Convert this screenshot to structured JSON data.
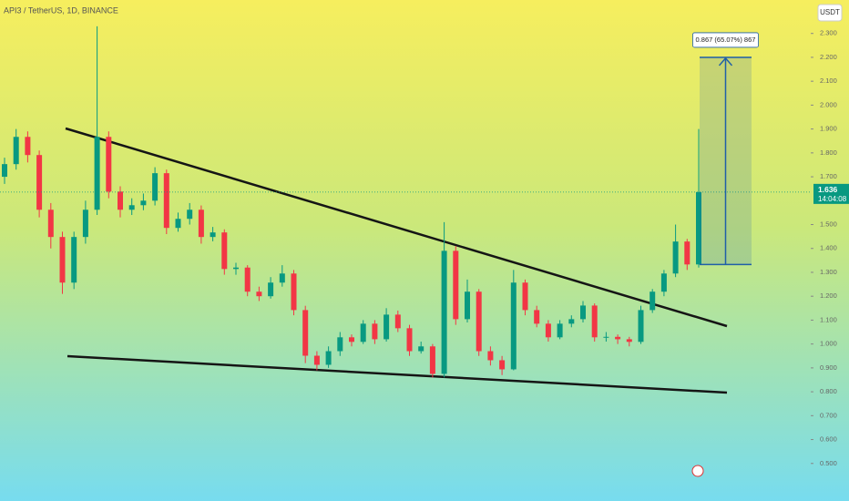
{
  "chart_data": {
    "type": "candlestick",
    "title": "API3 / TetherUS, 1D, BINANCE",
    "currency": "USDT",
    "up_color": "#089981",
    "down_color": "#f23645",
    "ylim": [
      0.4,
      2.44
    ],
    "yticks": [
      {
        "value": 2.3,
        "label": "2.300"
      },
      {
        "value": 2.2,
        "label": "2.200"
      },
      {
        "value": 2.1,
        "label": "2.100"
      },
      {
        "value": 2.0,
        "label": "2.000"
      },
      {
        "value": 1.9,
        "label": "1.900"
      },
      {
        "value": 1.8,
        "label": "1.800"
      },
      {
        "value": 1.7,
        "label": "1.700"
      },
      {
        "value": 1.5,
        "label": "1.500"
      },
      {
        "value": 1.4,
        "label": "1.400"
      },
      {
        "value": 1.3,
        "label": "1.300"
      },
      {
        "value": 1.2,
        "label": "1.200"
      },
      {
        "value": 1.1,
        "label": "1.100"
      },
      {
        "value": 1.0,
        "label": "1.000"
      },
      {
        "value": 0.9,
        "label": "0.900"
      },
      {
        "value": 0.8,
        "label": "0.800"
      },
      {
        "value": 0.7,
        "label": "0.700"
      },
      {
        "value": 0.6,
        "label": "0.600"
      },
      {
        "value": 0.5,
        "label": "0.500"
      }
    ],
    "candles": [
      [
        1.7,
        1.78,
        1.67,
        1.753
      ],
      [
        1.753,
        1.9,
        1.73,
        1.867
      ],
      [
        1.867,
        1.89,
        1.76,
        1.791
      ],
      [
        1.791,
        1.81,
        1.53,
        1.562
      ],
      [
        1.562,
        1.59,
        1.4,
        1.448
      ],
      [
        1.448,
        1.47,
        1.21,
        1.257
      ],
      [
        1.257,
        1.47,
        1.23,
        1.448
      ],
      [
        1.448,
        1.6,
        1.42,
        1.562
      ],
      [
        1.562,
        2.33,
        1.54,
        1.867
      ],
      [
        1.867,
        1.89,
        1.61,
        1.638
      ],
      [
        1.638,
        1.66,
        1.53,
        1.562
      ],
      [
        1.562,
        1.61,
        1.54,
        1.581
      ],
      [
        1.581,
        1.63,
        1.56,
        1.6
      ],
      [
        1.6,
        1.74,
        1.58,
        1.715
      ],
      [
        1.715,
        1.73,
        1.46,
        1.486
      ],
      [
        1.486,
        1.55,
        1.47,
        1.524
      ],
      [
        1.524,
        1.59,
        1.5,
        1.562
      ],
      [
        1.562,
        1.58,
        1.42,
        1.448
      ],
      [
        1.448,
        1.49,
        1.43,
        1.467
      ],
      [
        1.467,
        1.48,
        1.29,
        1.314
      ],
      [
        1.314,
        1.34,
        1.29,
        1.32
      ],
      [
        1.32,
        1.33,
        1.2,
        1.219
      ],
      [
        1.219,
        1.24,
        1.18,
        1.2
      ],
      [
        1.2,
        1.28,
        1.19,
        1.257
      ],
      [
        1.257,
        1.33,
        1.24,
        1.295
      ],
      [
        1.295,
        1.31,
        1.12,
        1.142
      ],
      [
        1.142,
        1.16,
        0.92,
        0.951
      ],
      [
        0.951,
        0.97,
        0.89,
        0.913
      ],
      [
        0.913,
        0.99,
        0.9,
        0.97
      ],
      [
        0.97,
        1.05,
        0.95,
        1.028
      ],
      [
        1.028,
        1.04,
        0.99,
        1.009
      ],
      [
        1.009,
        1.1,
        1.0,
        1.085
      ],
      [
        1.085,
        1.1,
        1.0,
        1.02
      ],
      [
        1.02,
        1.15,
        1.01,
        1.123
      ],
      [
        1.123,
        1.14,
        1.05,
        1.066
      ],
      [
        1.066,
        1.08,
        0.95,
        0.97
      ],
      [
        0.97,
        1.01,
        0.96,
        0.99
      ],
      [
        0.99,
        1.0,
        0.86,
        0.875
      ],
      [
        0.875,
        1.51,
        0.86,
        1.39
      ],
      [
        1.39,
        1.41,
        1.08,
        1.104
      ],
      [
        1.104,
        1.27,
        1.09,
        1.219
      ],
      [
        1.219,
        1.23,
        0.95,
        0.97
      ],
      [
        0.97,
        0.99,
        0.91,
        0.932
      ],
      [
        0.932,
        0.95,
        0.87,
        0.894
      ],
      [
        0.894,
        1.31,
        0.89,
        1.257
      ],
      [
        1.257,
        1.27,
        1.12,
        1.142
      ],
      [
        1.142,
        1.16,
        1.07,
        1.085
      ],
      [
        1.085,
        1.1,
        1.01,
        1.028
      ],
      [
        1.028,
        1.1,
        1.02,
        1.085
      ],
      [
        1.085,
        1.12,
        1.07,
        1.104
      ],
      [
        1.104,
        1.18,
        1.09,
        1.161
      ],
      [
        1.161,
        1.17,
        1.01,
        1.028
      ],
      [
        1.028,
        1.05,
        1.01,
        1.03
      ],
      [
        1.03,
        1.04,
        1.0,
        1.02
      ],
      [
        1.02,
        1.03,
        0.99,
        1.009
      ],
      [
        1.009,
        1.16,
        1.0,
        1.142
      ],
      [
        1.142,
        1.23,
        1.13,
        1.219
      ],
      [
        1.219,
        1.31,
        1.2,
        1.295
      ],
      [
        1.295,
        1.5,
        1.28,
        1.429
      ],
      [
        1.429,
        1.44,
        1.31,
        1.333
      ],
      [
        1.333,
        1.9,
        1.32,
        1.636
      ]
    ],
    "last_price": 1.636,
    "countdown": "14:04:08",
    "measure": {
      "from": 1.333,
      "to": 2.2,
      "label": "0.867 (65.07%) 867"
    }
  }
}
